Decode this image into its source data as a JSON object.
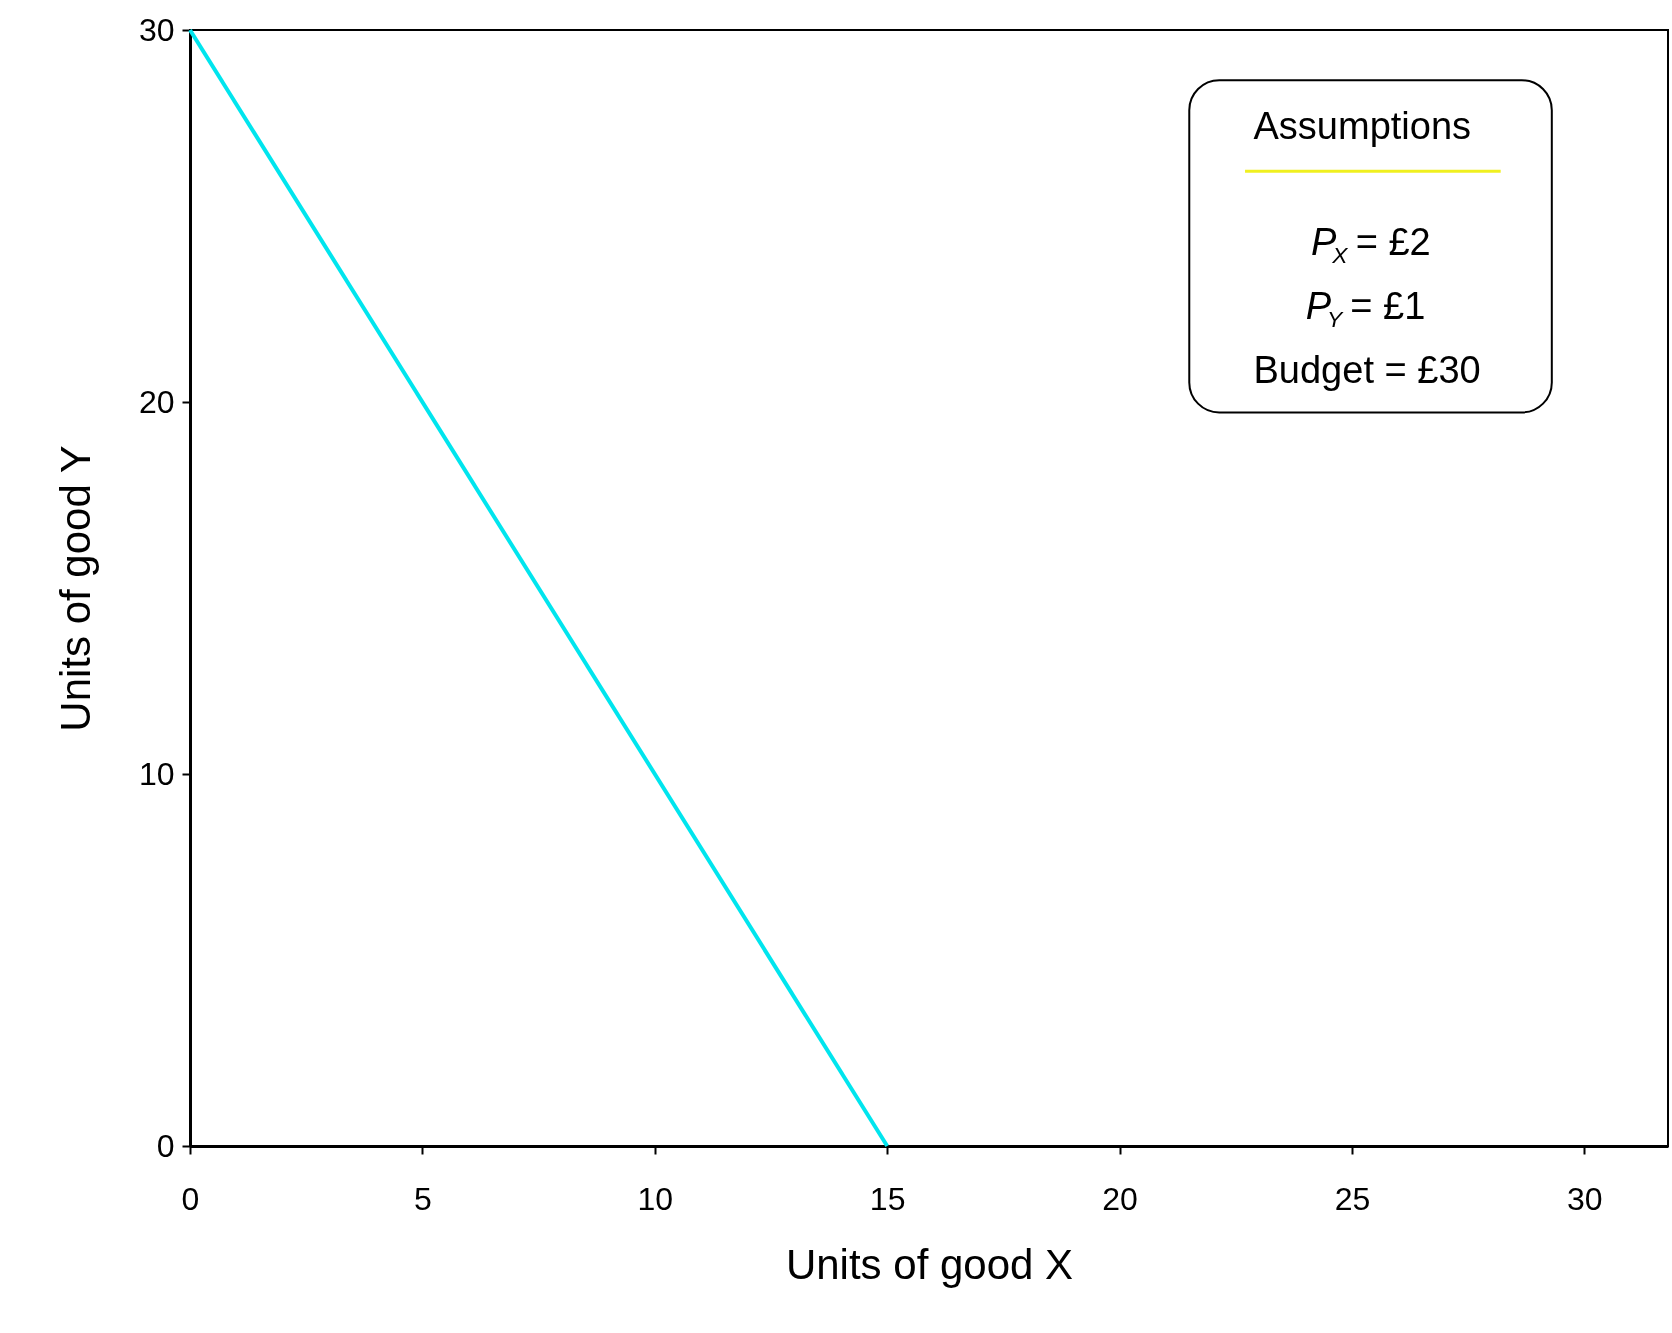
{
  "chart_data": {
    "type": "line",
    "xlabel": "Units of good X",
    "ylabel": "Units of good Y",
    "x": [
      0,
      15
    ],
    "series": [
      {
        "color": "#00e5ee",
        "values": [
          30,
          0
        ]
      }
    ],
    "xlim": [
      0,
      31.8
    ],
    "ylim": [
      0,
      30
    ],
    "xticks": [
      0,
      5,
      10,
      15,
      20,
      25,
      30
    ],
    "yticks": [
      0,
      10,
      20,
      30
    ],
    "grid": false,
    "marker": "none",
    "line_style": "solid",
    "annotations": [
      "Assumptions",
      "P$_{X}$ = £2",
      "P$_{Y}$ =  £1",
      "Budget = £30"
    ]
  }
}
